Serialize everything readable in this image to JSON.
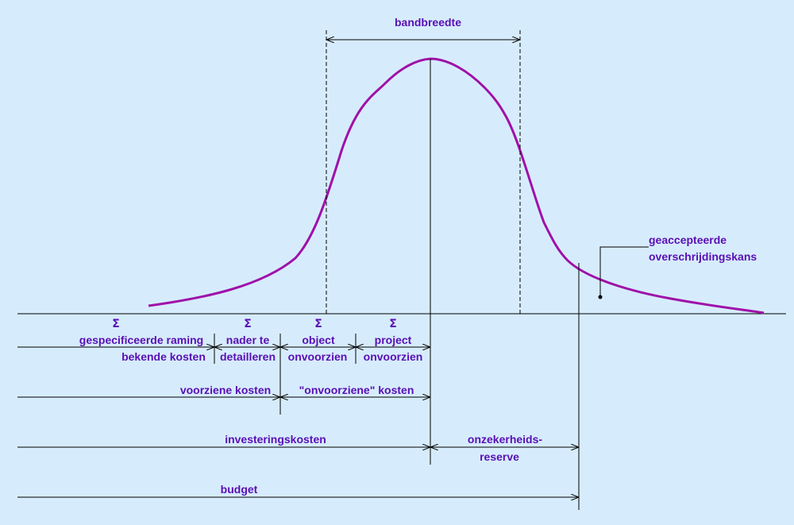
{
  "labels": {
    "bandbreedte": "bandbreedte",
    "accepted_1": "geaccepteerde",
    "accepted_2": "overschrijdingskans",
    "sigma": "Σ",
    "gespecificeerde": "gespecificeerde raming",
    "bekende": "bekende kosten",
    "nader": "nader te",
    "detailleren": "detailleren",
    "object": "object",
    "object_onv": "onvoorzien",
    "project": "project",
    "project_onv": "onvoorzien",
    "voorziene": "voorziene kosten",
    "onvoorziene": "\"onvoorziene\" kosten",
    "investeringskosten": "investeringskosten",
    "onzekerheids": "onzekerheids-",
    "reserve": "reserve",
    "budget": "budget"
  }
}
